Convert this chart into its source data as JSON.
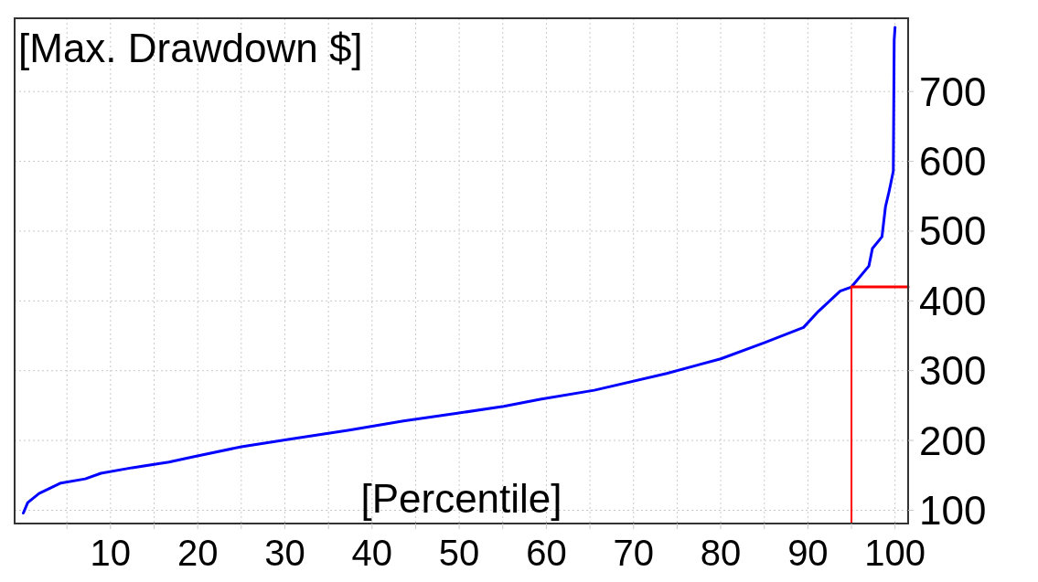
{
  "chart_data": {
    "type": "line",
    "ylabel": "[Max. Drawdown $]",
    "xlabel": "[Percentile]",
    "x": [
      0,
      0.5,
      1.8,
      4.3,
      7.1,
      8.9,
      12.5,
      16.7,
      19.6,
      25,
      31.2,
      37.4,
      43.6,
      49.8,
      55.1,
      59.3,
      65.5,
      73.8,
      80,
      85,
      89.5,
      91.2,
      93.7,
      95,
      97,
      97.4,
      98.5,
      98.9,
      99.3,
      99.8,
      99.9,
      100
    ],
    "series": [
      {
        "color": "#0000ff",
        "values": [
          96,
          111,
          124,
          139,
          145,
          153,
          161,
          169,
          177,
          191,
          203,
          215,
          228,
          239,
          249,
          259,
          272,
          296,
          317,
          340,
          362,
          385,
          414,
          420,
          450,
          475,
          492,
          535,
          556,
          586,
          774,
          792
        ]
      },
      {
        "type": "line",
        "color": "#ff0000",
        "x": [
          95,
          101.5
        ],
        "values": [
          420,
          420
        ]
      }
    ],
    "xlim": [
      -1,
      101.5
    ],
    "xticks": [
      {
        "value": 5,
        "label": null
      },
      10,
      {
        "value": 15,
        "label": null
      },
      20,
      {
        "value": 25,
        "label": null
      },
      30,
      {
        "value": 35,
        "label": null
      },
      40,
      {
        "value": 45,
        "label": null
      },
      50,
      {
        "value": 55,
        "label": null
      },
      60,
      {
        "value": 65,
        "label": null
      },
      70,
      {
        "value": 75,
        "label": null
      },
      80,
      {
        "value": 85,
        "label": null
      },
      90,
      {
        "value": 95,
        "label": null
      },
      100
    ],
    "ylim": [
      81,
      805
    ],
    "yticks": [
      100,
      200,
      300,
      400,
      500,
      600,
      700
    ],
    "grid": true,
    "line_style": "solid",
    "ref_lines": [
      {
        "axis": "x",
        "value": 95,
        "color": "#ff0000"
      }
    ]
  }
}
